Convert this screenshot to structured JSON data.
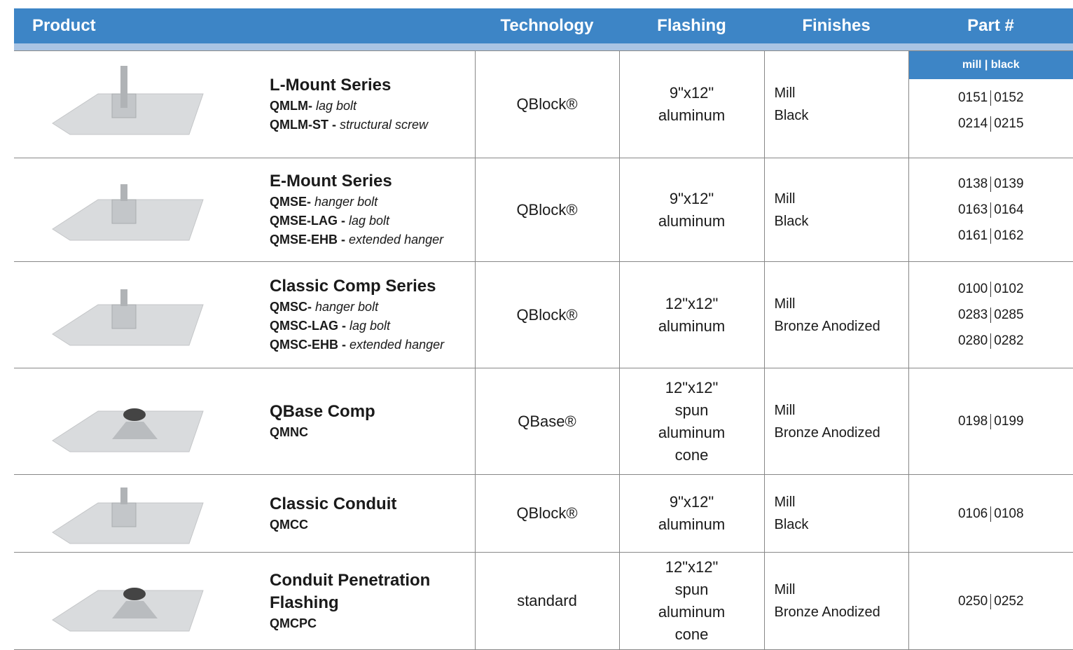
{
  "header": [
    "Product",
    "Technology",
    "Flashing",
    "Finishes",
    "Part #"
  ],
  "part_subheader": "mill | black",
  "rows": [
    {
      "name": "L-Mount Series",
      "models": [
        {
          "code": "QMLM-",
          "description": "lag bolt"
        },
        {
          "code": "QMLM-ST -",
          "description": "structural screw"
        }
      ],
      "technology": "QBlock®",
      "flashing": [
        "9\"x12\"",
        "aluminum"
      ],
      "finishes": [
        "Mill",
        "Black"
      ],
      "parts": [
        [
          "0151",
          "0152"
        ],
        [
          "0214",
          "0215"
        ]
      ]
    },
    {
      "name": "E-Mount Series",
      "models": [
        {
          "code": "QMSE-",
          "description": "hanger bolt"
        },
        {
          "code": "QMSE-LAG -",
          "description": "lag bolt"
        },
        {
          "code": "QMSE-EHB -",
          "description": "extended hanger"
        }
      ],
      "technology": "QBlock®",
      "flashing": [
        "9\"x12\"",
        "aluminum"
      ],
      "finishes": [
        "Mill",
        "Black"
      ],
      "parts": [
        [
          "0138",
          "0139"
        ],
        [
          "0163",
          "0164"
        ],
        [
          "0161",
          "0162"
        ]
      ]
    },
    {
      "name": "Classic Comp Series",
      "models": [
        {
          "code": "QMSC-",
          "description": "hanger bolt"
        },
        {
          "code": "QMSC-LAG -",
          "description": "lag bolt"
        },
        {
          "code": "QMSC-EHB -",
          "description": "extended hanger"
        }
      ],
      "technology": "QBlock®",
      "flashing": [
        "12\"x12\"",
        "aluminum"
      ],
      "finishes": [
        "Mill",
        "Bronze Anodized"
      ],
      "parts": [
        [
          "0100",
          "0102"
        ],
        [
          "0283",
          "0285"
        ],
        [
          "0280",
          "0282"
        ]
      ]
    },
    {
      "name": "QBase Comp",
      "models": [
        {
          "code": "QMNC"
        }
      ],
      "technology": "QBase®",
      "flashing": [
        "12\"x12\"",
        "spun",
        "aluminum",
        "cone"
      ],
      "finishes": [
        "Mill",
        "Bronze Anodized"
      ],
      "parts": [
        [
          "0198",
          "0199"
        ]
      ]
    },
    {
      "name": "Classic Conduit",
      "models": [
        {
          "code": "QMCC"
        }
      ],
      "technology": "QBlock®",
      "flashing": [
        "9\"x12\"",
        "aluminum"
      ],
      "finishes": [
        "Mill",
        "Black"
      ],
      "parts": [
        [
          "0106",
          "0108"
        ]
      ]
    },
    {
      "name": "Conduit Penetration Flashing",
      "models": [
        {
          "code": "QMCPC"
        }
      ],
      "technology": "standard",
      "flashing": [
        "12\"x12\"",
        "spun",
        "aluminum",
        "cone"
      ],
      "finishes": [
        "Mill",
        "Bronze Anodized"
      ],
      "parts": [
        [
          "0250",
          "0252"
        ]
      ]
    }
  ]
}
